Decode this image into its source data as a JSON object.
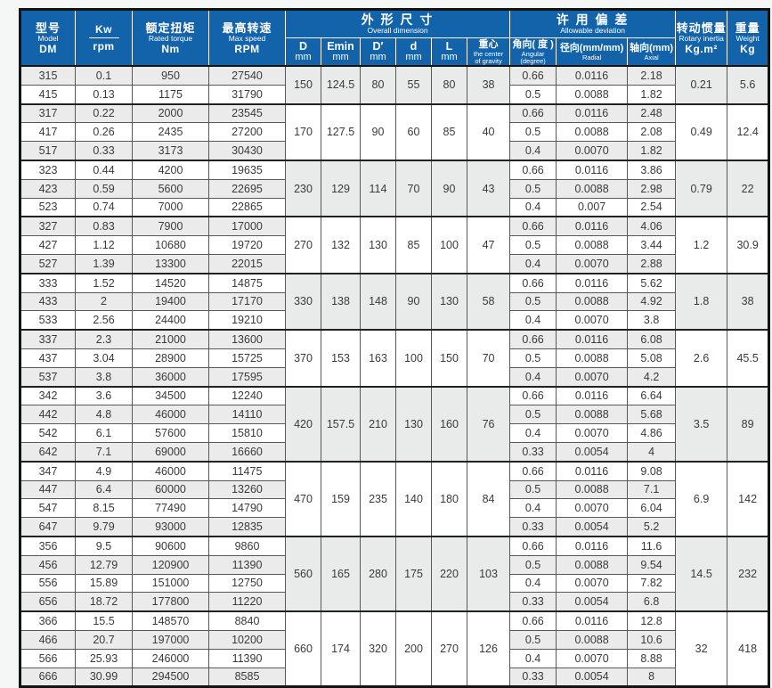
{
  "colors": {
    "header_bg": "#1363ab",
    "row_alt": "#ebebeb",
    "border_dark": "#141414",
    "page_bg": "#f5f6f6"
  },
  "header": {
    "model": {
      "zh": "型号",
      "en": "Model",
      "code": "DM"
    },
    "kw": {
      "numerator": "Kw",
      "denominator": "rpm"
    },
    "torque": {
      "zh": "额定扭矩",
      "en": "Rated torque",
      "unit": "Nm"
    },
    "speed": {
      "zh": "最高转速",
      "en": "Max speed",
      "unit": "RPM"
    },
    "dim_group": {
      "zh": "外 形 尺 寸",
      "en": "Overall dimension"
    },
    "dim_cols": [
      {
        "t": "D",
        "u": "mm"
      },
      {
        "t": "Emin",
        "u": "mm"
      },
      {
        "t": "D′",
        "u": "mm"
      },
      {
        "t": "d",
        "u": "mm"
      },
      {
        "t": "L",
        "u": "mm"
      }
    ],
    "cg": {
      "zh": "重心",
      "en1": "the center",
      "en2": "of gravity"
    },
    "dev_group": {
      "zh": "许 用 偏 差",
      "en": "Allowable deviation"
    },
    "dev_cols": [
      {
        "zh": "角向( 度 )",
        "en1": "Angular",
        "en2": "(degree)"
      },
      {
        "zh": "径向(mm/mm)",
        "en1": "Radial",
        "en2": ""
      },
      {
        "zh": "轴向(mm)",
        "en1": "Axial",
        "en2": ""
      }
    ],
    "inertia": {
      "zh": "转动惯量",
      "en": "Rotary inertia",
      "unit": "Kg.m²"
    },
    "weight": {
      "zh": "重量",
      "en": "Weight",
      "unit": "Kg"
    }
  },
  "groups": [
    {
      "dims": {
        "D": "150",
        "Emin": "124.5",
        "Dp": "80",
        "d": "55",
        "L": "80",
        "cg": "38"
      },
      "inertia": "0.21",
      "weight": "5.6",
      "rows": [
        {
          "model": "315",
          "kw": "0.1",
          "torque": "950",
          "speed": "27540",
          "ang": "0.66",
          "rad": "0.0116",
          "axi": "2.18"
        },
        {
          "model": "415",
          "kw": "0.13",
          "torque": "1175",
          "speed": "31790",
          "ang": "0.5",
          "rad": "0.0088",
          "axi": "1.82"
        }
      ]
    },
    {
      "dims": {
        "D": "170",
        "Emin": "127.5",
        "Dp": "90",
        "d": "60",
        "L": "85",
        "cg": "40"
      },
      "inertia": "0.49",
      "weight": "12.4",
      "rows": [
        {
          "model": "317",
          "kw": "0.22",
          "torque": "2000",
          "speed": "23545",
          "ang": "0.66",
          "rad": "0.0116",
          "axi": "2.48"
        },
        {
          "model": "417",
          "kw": "0.26",
          "torque": "2435",
          "speed": "27200",
          "ang": "0.5",
          "rad": "0.0088",
          "axi": "2.08"
        },
        {
          "model": "517",
          "kw": "0.33",
          "torque": "3173",
          "speed": "30430",
          "ang": "0.4",
          "rad": "0.0070",
          "axi": "1.82"
        }
      ]
    },
    {
      "dims": {
        "D": "230",
        "Emin": "129",
        "Dp": "114",
        "d": "70",
        "L": "90",
        "cg": "43"
      },
      "inertia": "0.79",
      "weight": "22",
      "rows": [
        {
          "model": "323",
          "kw": "0.44",
          "torque": "4200",
          "speed": "19635",
          "ang": "0.66",
          "rad": "0.0116",
          "axi": "3.86"
        },
        {
          "model": "423",
          "kw": "0.59",
          "torque": "5600",
          "speed": "22695",
          "ang": "0.5",
          "rad": "0.0088",
          "axi": "2.98"
        },
        {
          "model": "523",
          "kw": "0.74",
          "torque": "7000",
          "speed": "22865",
          "ang": "0.4",
          "rad": "0.007",
          "axi": "2.54"
        }
      ]
    },
    {
      "dims": {
        "D": "270",
        "Emin": "132",
        "Dp": "130",
        "d": "85",
        "L": "100",
        "cg": "47"
      },
      "inertia": "1.2",
      "weight": "30.9",
      "rows": [
        {
          "model": "327",
          "kw": "0.83",
          "torque": "7900",
          "speed": "17000",
          "ang": "0.66",
          "rad": "0.0116",
          "axi": "4.06"
        },
        {
          "model": "427",
          "kw": "1.12",
          "torque": "10680",
          "speed": "19720",
          "ang": "0.5",
          "rad": "0.0088",
          "axi": "3.44"
        },
        {
          "model": "527",
          "kw": "1.39",
          "torque": "13300",
          "speed": "22015",
          "ang": "0.4",
          "rad": "0.0070",
          "axi": "2.88"
        }
      ]
    },
    {
      "dims": {
        "D": "330",
        "Emin": "138",
        "Dp": "148",
        "d": "90",
        "L": "130",
        "cg": "58"
      },
      "inertia": "1.8",
      "weight": "38",
      "rows": [
        {
          "model": "333",
          "kw": "1.52",
          "torque": "14520",
          "speed": "14875",
          "ang": "0.66",
          "rad": "0.0116",
          "axi": "5.62"
        },
        {
          "model": "433",
          "kw": "2",
          "torque": "19400",
          "speed": "17170",
          "ang": "0.5",
          "rad": "0.0088",
          "axi": "4.92"
        },
        {
          "model": "533",
          "kw": "2.56",
          "torque": "24400",
          "speed": "19210",
          "ang": "0.4",
          "rad": "0.0070",
          "axi": "3.8"
        }
      ]
    },
    {
      "dims": {
        "D": "370",
        "Emin": "153",
        "Dp": "163",
        "d": "100",
        "L": "150",
        "cg": "70"
      },
      "inertia": "2.6",
      "weight": "45.5",
      "rows": [
        {
          "model": "337",
          "kw": "2.3",
          "torque": "21000",
          "speed": "13600",
          "ang": "0.66",
          "rad": "0.0116",
          "axi": "6.08"
        },
        {
          "model": "437",
          "kw": "3.04",
          "torque": "28900",
          "speed": "15725",
          "ang": "0.5",
          "rad": "0.0088",
          "axi": "5.08"
        },
        {
          "model": "537",
          "kw": "3.8",
          "torque": "36000",
          "speed": "17595",
          "ang": "0.4",
          "rad": "0.0070",
          "axi": "4.2"
        }
      ]
    },
    {
      "dims": {
        "D": "420",
        "Emin": "157.5",
        "Dp": "210",
        "d": "130",
        "L": "160",
        "cg": "76"
      },
      "inertia": "3.5",
      "weight": "89",
      "rows": [
        {
          "model": "342",
          "kw": "3.6",
          "torque": "34500",
          "speed": "12240",
          "ang": "0.66",
          "rad": "0.0116",
          "axi": "6.64"
        },
        {
          "model": "442",
          "kw": "4.8",
          "torque": "46000",
          "speed": "14110",
          "ang": "0.5",
          "rad": "0.0088",
          "axi": "5.68"
        },
        {
          "model": "542",
          "kw": "6.1",
          "torque": "57600",
          "speed": "15810",
          "ang": "0.4",
          "rad": "0.0070",
          "axi": "4.86"
        },
        {
          "model": "642",
          "kw": "7.1",
          "torque": "69000",
          "speed": "16660",
          "ang": "0.33",
          "rad": "0.0054",
          "axi": "4"
        }
      ]
    },
    {
      "dims": {
        "D": "470",
        "Emin": "159",
        "Dp": "235",
        "d": "140",
        "L": "180",
        "cg": "84"
      },
      "inertia": "6.9",
      "weight": "142",
      "rows": [
        {
          "model": "347",
          "kw": "4.9",
          "torque": "46000",
          "speed": "11475",
          "ang": "0.66",
          "rad": "0.0116",
          "axi": "9.08"
        },
        {
          "model": "447",
          "kw": "6.4",
          "torque": "60000",
          "speed": "13260",
          "ang": "0.5",
          "rad": "0.0088",
          "axi": "7.1"
        },
        {
          "model": "547",
          "kw": "8.15",
          "torque": "77490",
          "speed": "14790",
          "ang": "0.4",
          "rad": "0.0070",
          "axi": "6.04"
        },
        {
          "model": "647",
          "kw": "9.79",
          "torque": "93000",
          "speed": "12835",
          "ang": "0.33",
          "rad": "0.0054",
          "axi": "5.2"
        }
      ]
    },
    {
      "dims": {
        "D": "560",
        "Emin": "165",
        "Dp": "280",
        "d": "175",
        "L": "220",
        "cg": "103"
      },
      "inertia": "14.5",
      "weight": "232",
      "rows": [
        {
          "model": "356",
          "kw": "9.5",
          "torque": "90600",
          "speed": "9860",
          "ang": "0.66",
          "rad": "0.0116",
          "axi": "11.6"
        },
        {
          "model": "456",
          "kw": "12.79",
          "torque": "120900",
          "speed": "11390",
          "ang": "0.5",
          "rad": "0.0088",
          "axi": "9.54"
        },
        {
          "model": "556",
          "kw": "15.89",
          "torque": "151000",
          "speed": "12750",
          "ang": "0.4",
          "rad": "0.0070",
          "axi": "7.82"
        },
        {
          "model": "656",
          "kw": "18.72",
          "torque": "177800",
          "speed": "11220",
          "ang": "0.33",
          "rad": "0.0054",
          "axi": "6.8"
        }
      ]
    },
    {
      "dims": {
        "D": "660",
        "Emin": "174",
        "Dp": "320",
        "d": "200",
        "L": "270",
        "cg": "126"
      },
      "inertia": "32",
      "weight": "418",
      "rows": [
        {
          "model": "366",
          "kw": "15.5",
          "torque": "148570",
          "speed": "8840",
          "ang": "0.66",
          "rad": "0.0116",
          "axi": "12.8"
        },
        {
          "model": "466",
          "kw": "20.7",
          "torque": "197000",
          "speed": "10200",
          "ang": "0.5",
          "rad": "0.0088",
          "axi": "10.6"
        },
        {
          "model": "566",
          "kw": "25.93",
          "torque": "246000",
          "speed": "11390",
          "ang": "0.4",
          "rad": "0.0070",
          "axi": "8.88"
        },
        {
          "model": "666",
          "kw": "30.99",
          "torque": "294500",
          "speed": "8585",
          "ang": "0.33",
          "rad": "0.0054",
          "axi": "8"
        }
      ]
    }
  ]
}
